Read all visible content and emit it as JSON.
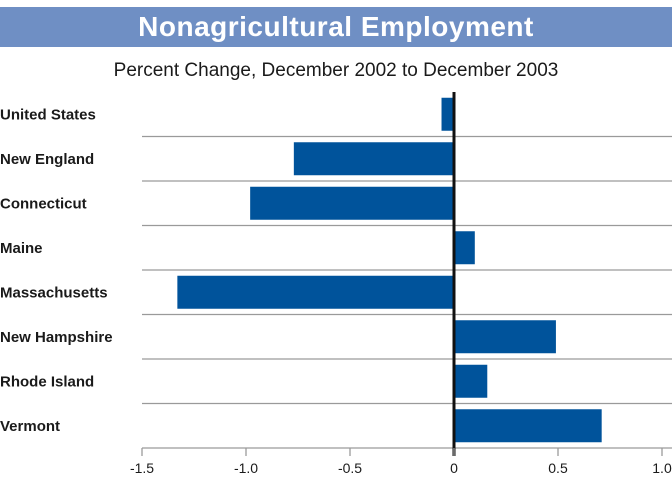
{
  "colors": {
    "title_bar": "#6f8fc4",
    "title_text": "#ffffff",
    "bar": "#00539b",
    "gridline": "#9a9a9a",
    "zero_line": "#111111",
    "text": "#1a1a1a"
  },
  "chart_data": {
    "type": "bar",
    "orientation": "horizontal",
    "title": "Nonagricultural Employment",
    "subtitle": "Percent Change, December 2002 to December 2003",
    "categories": [
      "United States",
      "New England",
      "Connecticut",
      "Maine",
      "Massachusetts",
      "New Hampshire",
      "Rhode Island",
      "Vermont"
    ],
    "values": [
      -0.06,
      -0.77,
      -0.98,
      0.1,
      -1.33,
      0.49,
      0.16,
      0.71
    ],
    "xlim": [
      -1.5,
      1.0
    ],
    "xticks": [
      -1.5,
      -1.0,
      -0.5,
      0,
      0.5,
      1.0
    ],
    "xtick_labels": [
      "-1.5",
      "-1.0",
      "-0.5",
      "0",
      "0.5",
      "1.0"
    ],
    "grid": "horizontal separators",
    "legend": "none"
  }
}
